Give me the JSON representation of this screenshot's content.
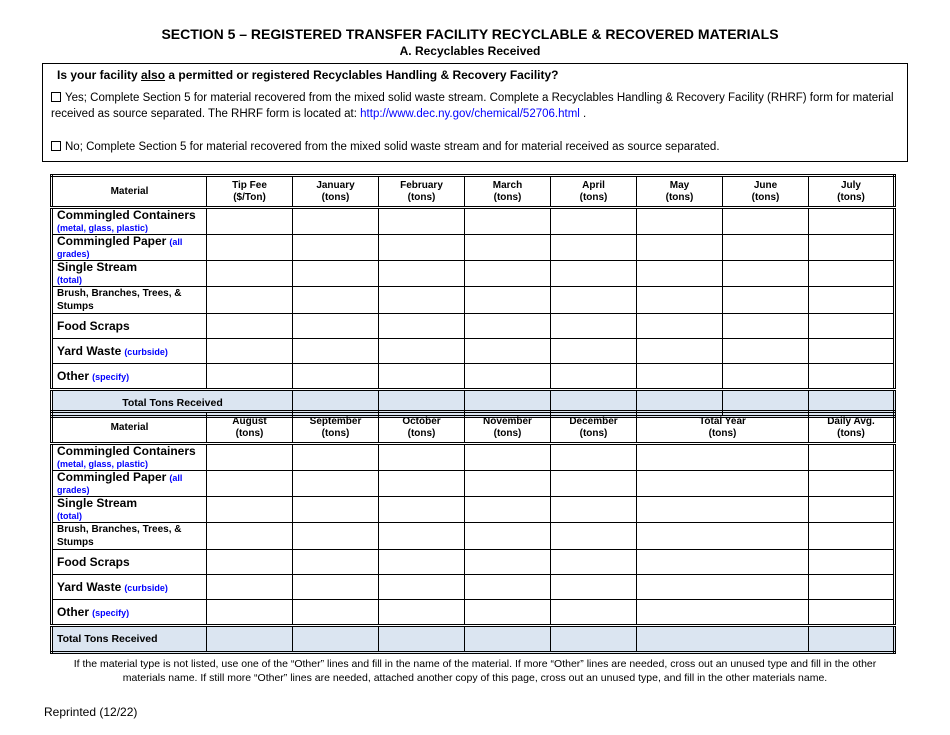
{
  "title": "SECTION 5 – REGISTERED TRANSFER FACILITY RECYCLABLE & RECOVERED MATERIALS",
  "subtitle": "A. Recyclables Received",
  "question": {
    "pre": "Is your facility ",
    "underlined": "also",
    "post": " a permitted or registered Recyclables Handling & Recovery Facility?",
    "yes_text": "Yes; Complete Section 5 for material recovered from the mixed solid waste stream.  Complete a Recyclables Handling & Recovery Facility (RHRF) form for material received as source separated.  The RHRF form is located at: ",
    "yes_link": "http://www.dec.ny.gov/chemical/52706.html",
    "yes_end": " .",
    "no_text": "No; Complete Section 5 for material recovered from the mixed solid waste stream and for material received as source separated."
  },
  "materials": [
    {
      "name": "Commingled Containers",
      "note": "(metal, glass, plastic)",
      "break": true
    },
    {
      "name": "Commingled Paper",
      "note": "(all grades)",
      "break": false
    },
    {
      "name": "Single Stream",
      "note": "(total)",
      "break": true
    },
    {
      "name": "Brush, Branches, Trees, & Stumps",
      "note": "",
      "small": true
    },
    {
      "name": "Food Scraps",
      "note": ""
    },
    {
      "name": "Yard Waste",
      "note": "(curbside)",
      "break": false
    },
    {
      "name": "Other",
      "note": "(specify)",
      "break": false
    }
  ],
  "table1": {
    "material_header": "Material",
    "columns": [
      [
        "Tip Fee",
        "($/Ton)"
      ],
      [
        "January",
        "(tons)"
      ],
      [
        "February",
        "(tons)"
      ],
      [
        "March",
        "(tons)"
      ],
      [
        "April",
        "(tons)"
      ],
      [
        "May",
        "(tons)"
      ],
      [
        "June",
        "(tons)"
      ],
      [
        "July",
        "(tons)"
      ]
    ],
    "total_label": "Total Tons Received"
  },
  "table2": {
    "material_header": "Material",
    "columns": [
      [
        "August",
        "(tons)"
      ],
      [
        "September",
        "(tons)"
      ],
      [
        "October",
        "(tons)"
      ],
      [
        "November",
        "(tons)"
      ],
      [
        "December",
        "(tons)"
      ],
      [
        "Total Year",
        "(tons)"
      ],
      [
        "Daily Avg.",
        "(tons)"
      ]
    ],
    "total_label": "Total Tons Received"
  },
  "footnote": "If the material type is not listed, use one of the “Other” lines and fill in the name of the material.  If more “Other” lines are needed, cross out an unused type and fill in the other materials name.  If still more “Other” lines are needed, attached another copy of this page, cross out an unused type, and fill in the other materials name.",
  "reprint": "Reprinted (12/22)"
}
